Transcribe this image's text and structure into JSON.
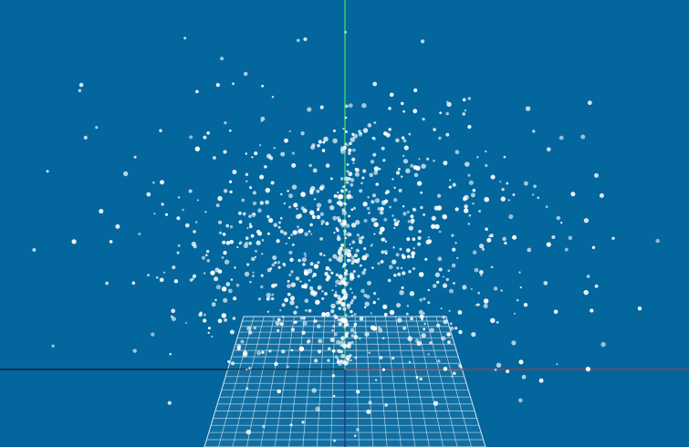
{
  "scene": {
    "background_color": "#03669d",
    "particle_color": "#ffffff",
    "particle_count": 1000,
    "axes": {
      "x_axis_color": "#b03a3a",
      "x_axis_negative_color": "#101820",
      "y_axis_color": "#4ee06a",
      "y_axis_lower_color": "#2a2a8a"
    },
    "ground_grid": {
      "line_color": "#cfe3f2",
      "divisions": 20
    }
  }
}
